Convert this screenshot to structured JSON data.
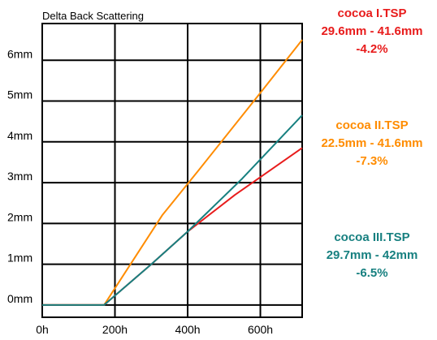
{
  "chart_data": {
    "type": "line",
    "title": "Delta Back Scattering",
    "xlabel": "",
    "ylabel": "",
    "x_ticks": [
      "0h",
      "200h",
      "400h",
      "600h"
    ],
    "y_ticks": [
      "0mm",
      "1mm",
      "2mm",
      "3mm",
      "4mm",
      "5mm",
      "6mm"
    ],
    "xlim": [
      0,
      715
    ],
    "ylim": [
      -0.3,
      6.9
    ],
    "grid": true,
    "series": [
      {
        "name": "cocoa I.TSP",
        "color": "#ff8c00",
        "x": [
          0,
          170,
          330,
          430,
          600,
          715
        ],
        "y": [
          0,
          0,
          2.2,
          3.3,
          5.2,
          6.5
        ]
      },
      {
        "name": "cocoa II.TSP",
        "color": "#e81c1c",
        "x": [
          0,
          170,
          300,
          400,
          530,
          715
        ],
        "y": [
          0,
          0,
          1.0,
          1.8,
          2.7,
          3.85
        ]
      },
      {
        "name": "cocoa III.TSP",
        "color": "#178080",
        "x": [
          0,
          170,
          300,
          400,
          550,
          715
        ],
        "y": [
          0,
          0,
          1.0,
          1.8,
          3.1,
          4.65
        ]
      }
    ],
    "legend": [
      {
        "name": "cocoa I.TSP",
        "range": "29.6mm - 41.6mm",
        "pct": "-4.2%",
        "color": "#e81c1c"
      },
      {
        "name": "cocoa II.TSP",
        "range": "22.5mm - 41.6mm",
        "pct": "-7.3%",
        "color": "#ff8c00"
      },
      {
        "name": "cocoa III.TSP",
        "range": "29.7mm - 42mm",
        "pct": "-6.5%",
        "color": "#178080"
      }
    ]
  }
}
